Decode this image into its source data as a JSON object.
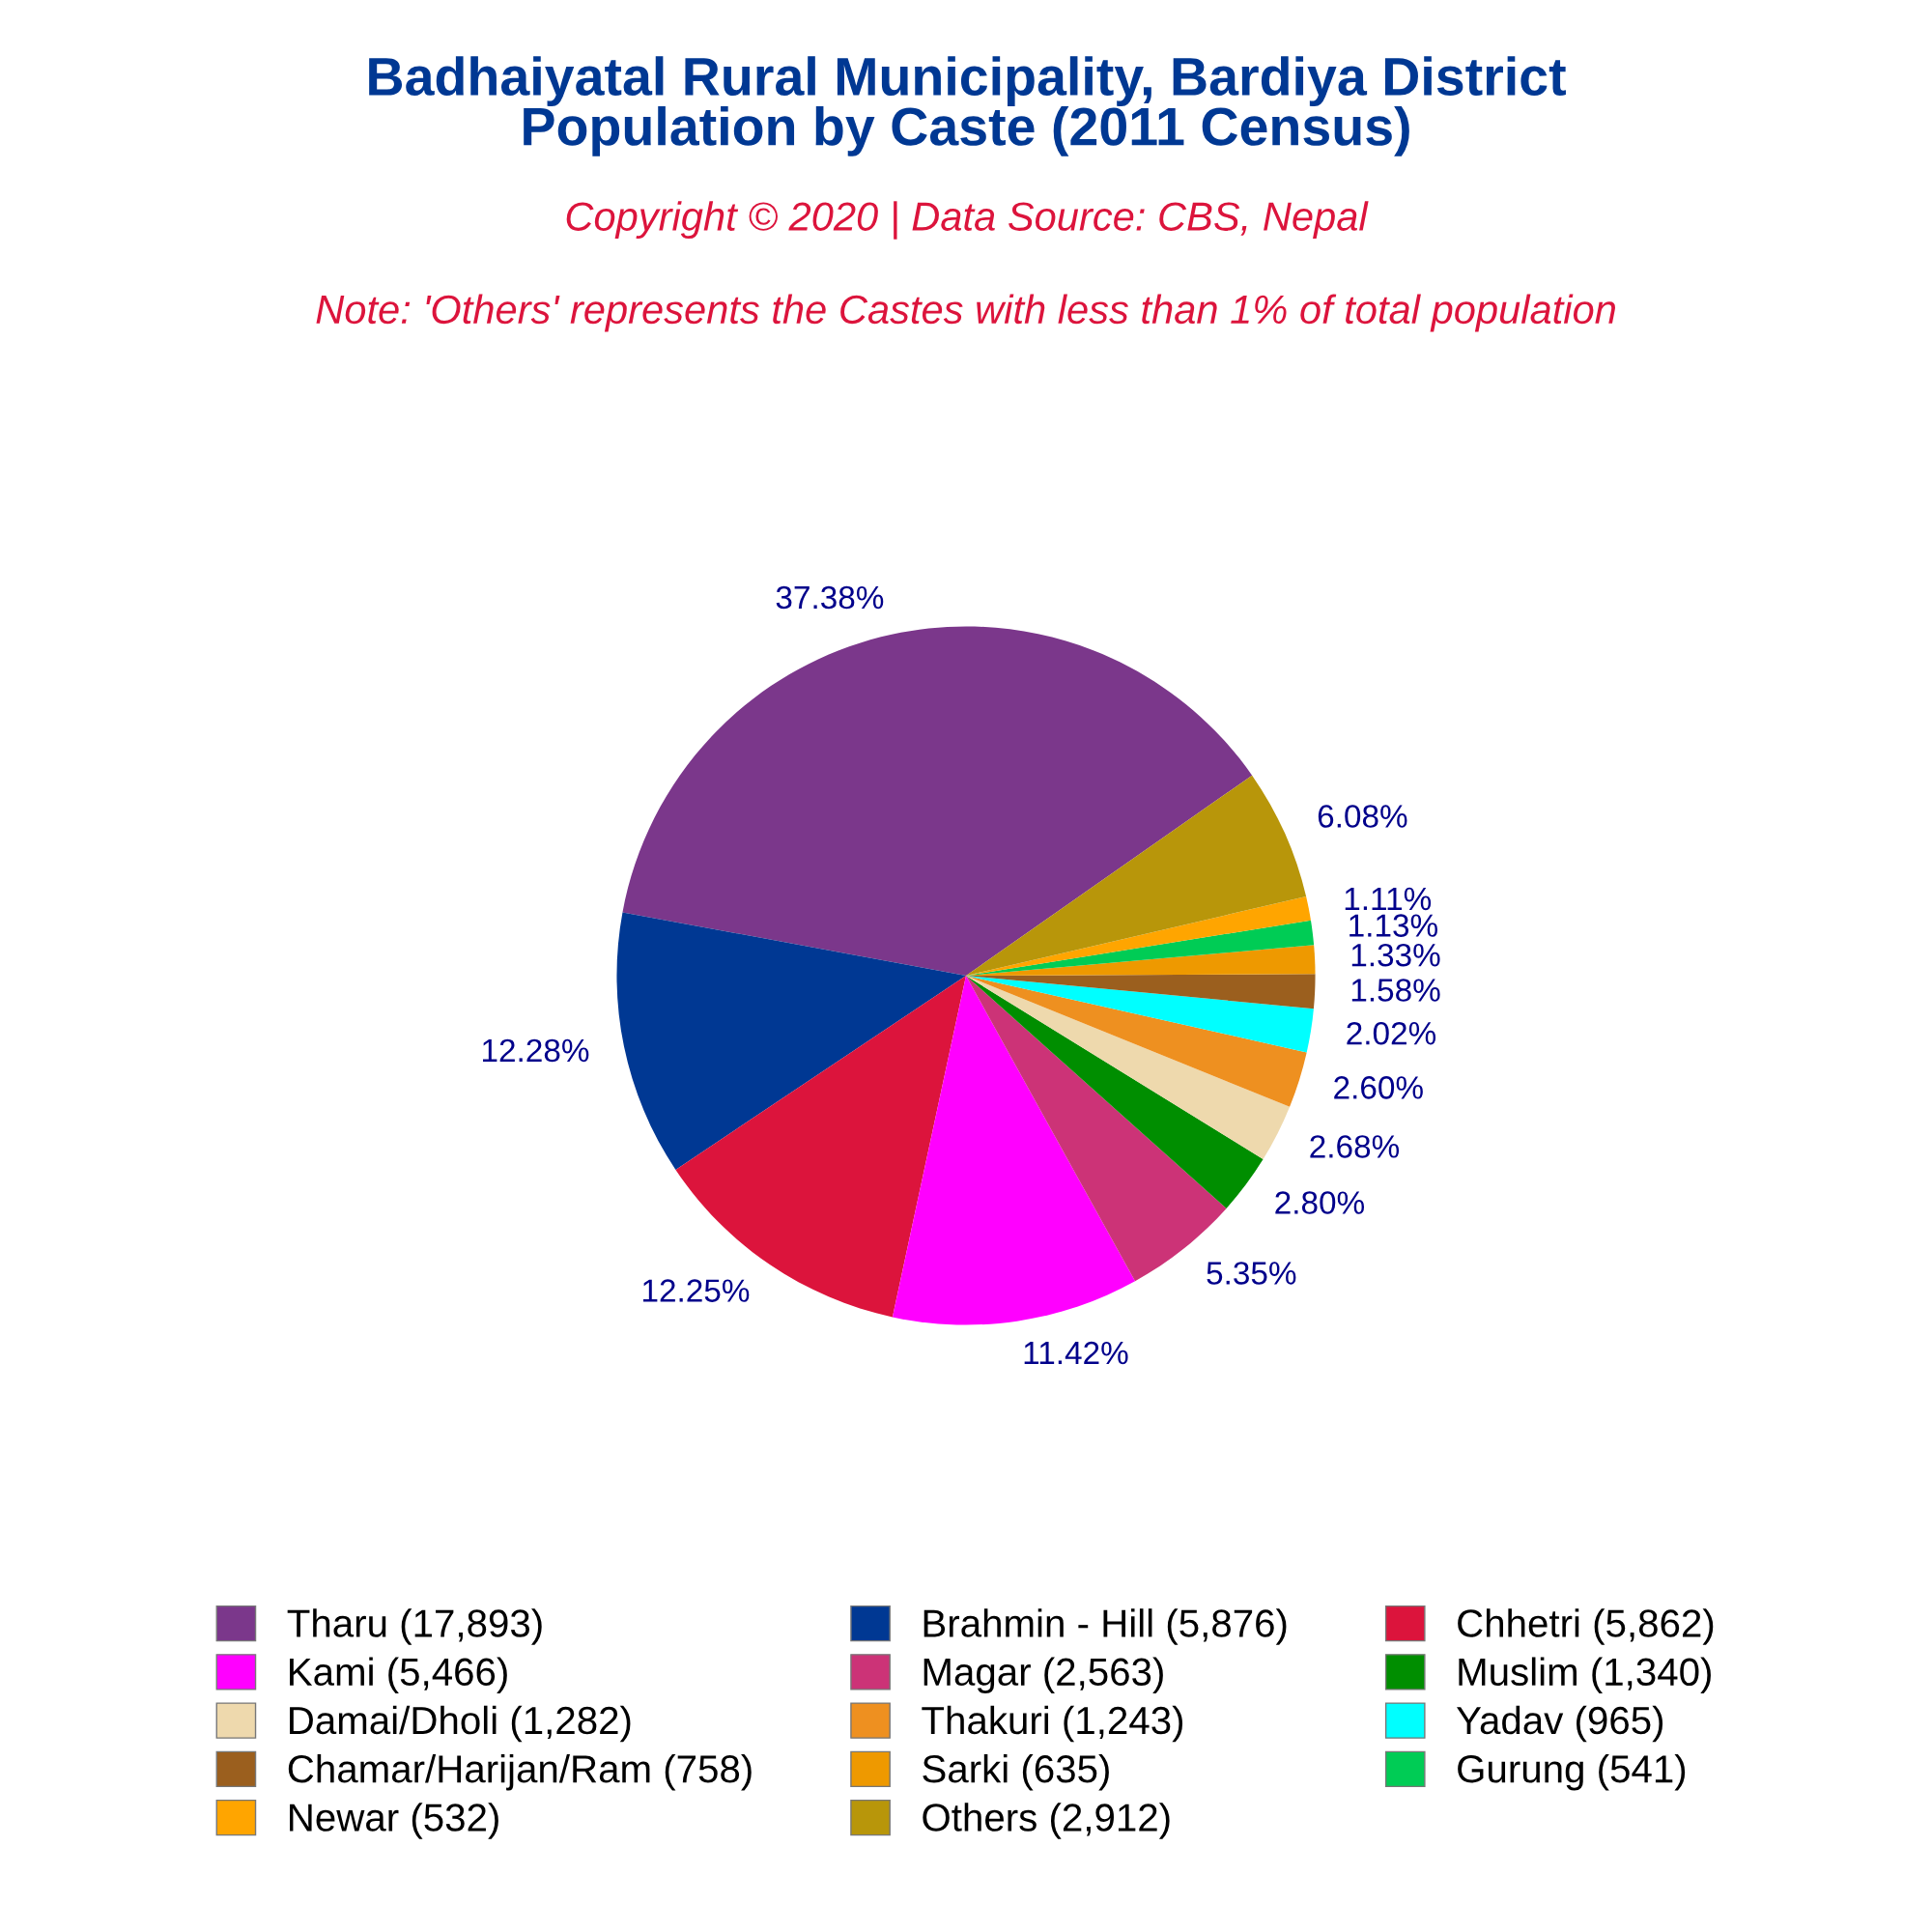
{
  "chart_data": {
    "type": "pie",
    "title": "Badhaiyatal Rural Municipality, Bardiya District\nPopulation by Caste (2011 Census)",
    "subtitle": "Copyright © 2020 | Data Source: CBS, Nepal",
    "annotations": [
      "Note: 'Others' represents the Castes with less than 1% of total population"
    ],
    "categories": [
      "Tharu (17,893)",
      "Brahmin - Hill (5,876)",
      "Chhetri (5,862)",
      "Kami (5,466)",
      "Magar (2,563)",
      "Muslim (1,340)",
      "Damai/Dholi (1,282)",
      "Thakuri (1,243)",
      "Yadav (965)",
      "Chamar/Harijan/Ram (758)",
      "Sarki (635)",
      "Gurung (541)",
      "Newar (532)",
      "Others (2,912)"
    ],
    "values": [
      37.38,
      12.28,
      12.25,
      11.42,
      5.35,
      2.8,
      2.68,
      2.6,
      2.02,
      1.58,
      1.33,
      1.13,
      1.11,
      6.08
    ],
    "value_labels": [
      "37.38%",
      "12.28%",
      "12.25%",
      "11.42%",
      "5.35%",
      "2.80%",
      "2.68%",
      "2.60%",
      "2.02%",
      "1.58%",
      "1.33%",
      "1.13%",
      "1.11%",
      "6.08%"
    ],
    "colors": [
      "#7b378b",
      "#003893",
      "#dc143c",
      "#ff00ff",
      "#cc3377",
      "#008e00",
      "#eed9ad",
      "#ee9020",
      "#00ffff",
      "#9b5f1e",
      "#ee9900",
      "#00cc55",
      "#ffa500",
      "#b8960a"
    ],
    "legend": "bottom"
  }
}
